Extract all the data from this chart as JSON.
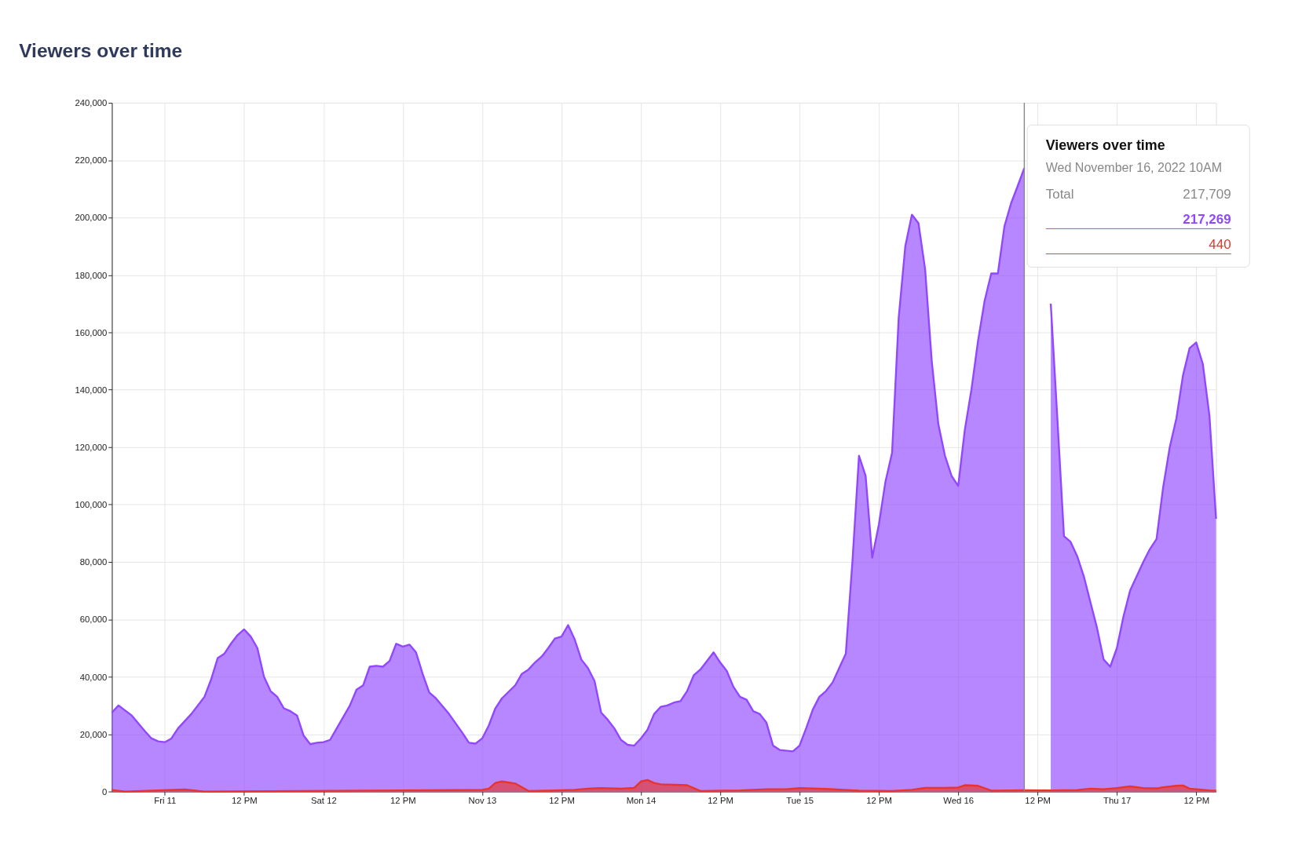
{
  "chart_data": {
    "type": "area",
    "title": "Viewers over time",
    "x": [
      "2022-11-10T16:00",
      "2022-11-10T17:00",
      "2022-11-10T19:00",
      "2022-11-10T21:00",
      "2022-11-10T22:00",
      "2022-11-10T23:00",
      "2022-11-11T00:00",
      "2022-11-11T01:00",
      "2022-11-11T02:00",
      "2022-11-11T04:00",
      "2022-11-11T06:00",
      "2022-11-11T07:00",
      "2022-11-11T08:00",
      "2022-11-11T09:00",
      "2022-11-11T10:00",
      "2022-11-11T11:00",
      "2022-11-11T12:00",
      "2022-11-11T13:00",
      "2022-11-11T14:00",
      "2022-11-11T15:00",
      "2022-11-11T16:00",
      "2022-11-11T17:00",
      "2022-11-11T18:00",
      "2022-11-11T19:00",
      "2022-11-11T20:00",
      "2022-11-11T21:00",
      "2022-11-11T22:00",
      "2022-11-11T23:00",
      "2022-11-12T00:00",
      "2022-11-12T01:00",
      "2022-11-12T02:00",
      "2022-11-12T04:00",
      "2022-11-12T05:00",
      "2022-11-12T06:00",
      "2022-11-12T07:00",
      "2022-11-12T08:00",
      "2022-11-12T09:00",
      "2022-11-12T10:00",
      "2022-11-12T11:00",
      "2022-11-12T12:00",
      "2022-11-12T13:00",
      "2022-11-12T14:00",
      "2022-11-12T15:00",
      "2022-11-12T16:00",
      "2022-11-12T17:00",
      "2022-11-12T19:00",
      "2022-11-12T21:00",
      "2022-11-12T22:00",
      "2022-11-12T23:00",
      "2022-11-13T00:00",
      "2022-11-13T01:00",
      "2022-11-13T02:00",
      "2022-11-13T03:00",
      "2022-11-13T05:00",
      "2022-11-13T06:00",
      "2022-11-13T07:00",
      "2022-11-13T08:00",
      "2022-11-13T09:00",
      "2022-11-13T10:00",
      "2022-11-13T11:00",
      "2022-11-13T12:00",
      "2022-11-13T13:00",
      "2022-11-13T14:00",
      "2022-11-13T15:00",
      "2022-11-13T16:00",
      "2022-11-13T17:00",
      "2022-11-13T18:00",
      "2022-11-13T19:00",
      "2022-11-13T20:00",
      "2022-11-13T21:00",
      "2022-11-13T22:00",
      "2022-11-13T23:00",
      "2022-11-14T00:00",
      "2022-11-14T01:00",
      "2022-11-14T02:00",
      "2022-11-14T03:00",
      "2022-11-14T04:00",
      "2022-11-14T05:00",
      "2022-11-14T06:00",
      "2022-11-14T07:00",
      "2022-11-14T08:00",
      "2022-11-14T09:00",
      "2022-11-14T10:00",
      "2022-11-14T11:00",
      "2022-11-14T12:00",
      "2022-11-14T13:00",
      "2022-11-14T14:00",
      "2022-11-14T15:00",
      "2022-11-14T16:00",
      "2022-11-14T17:00",
      "2022-11-14T18:00",
      "2022-11-14T19:00",
      "2022-11-14T20:00",
      "2022-11-14T21:00",
      "2022-11-14T23:00",
      "2022-11-15T00:00",
      "2022-11-15T01:00",
      "2022-11-15T02:00",
      "2022-11-15T03:00",
      "2022-11-15T04:00",
      "2022-11-15T05:00",
      "2022-11-15T06:00",
      "2022-11-15T07:00",
      "2022-11-15T08:00",
      "2022-11-15T09:00",
      "2022-11-15T10:00",
      "2022-11-15T11:00",
      "2022-11-15T12:00",
      "2022-11-15T13:00",
      "2022-11-15T14:00",
      "2022-11-15T15:00",
      "2022-11-15T16:00",
      "2022-11-15T17:00",
      "2022-11-15T18:00",
      "2022-11-15T19:00",
      "2022-11-15T20:00",
      "2022-11-15T21:00",
      "2022-11-15T22:00",
      "2022-11-15T23:00",
      "2022-11-16T00:00",
      "2022-11-16T01:00",
      "2022-11-16T02:00",
      "2022-11-16T03:00",
      "2022-11-16T04:00",
      "2022-11-16T05:00",
      "2022-11-16T06:00",
      "2022-11-16T07:00",
      "2022-11-16T08:00",
      "2022-11-16T09:00",
      "2022-11-16T10:00",
      "2022-11-16T11:00",
      "2022-11-16T12:00",
      "2022-11-16T13:00",
      "2022-11-16T14:00",
      "2022-11-16T15:00",
      "2022-11-16T16:00",
      "2022-11-16T17:00",
      "2022-11-16T18:00",
      "2022-11-16T19:00",
      "2022-11-16T20:00",
      "2022-11-16T21:00",
      "2022-11-16T22:00",
      "2022-11-16T23:00",
      "2022-11-17T00:00",
      "2022-11-17T01:00",
      "2022-11-17T02:00",
      "2022-11-17T03:00",
      "2022-11-17T04:00",
      "2022-11-17T05:00",
      "2022-11-17T06:00",
      "2022-11-17T07:00",
      "2022-11-17T08:00",
      "2022-11-17T09:00",
      "2022-11-17T10:00",
      "2022-11-17T11:00",
      "2022-11-17T12:00",
      "2022-11-17T13:00",
      "2022-11-17T14:00",
      "2022-11-17T15:00"
    ],
    "series": [
      {
        "color": "#9147ff",
        "values": [
          27500,
          30000,
          26500,
          21000,
          18500,
          17500,
          17200,
          18500,
          22000,
          27000,
          33000,
          39000,
          46500,
          48000,
          51500,
          54500,
          56500,
          54000,
          50000,
          40000,
          35000,
          33000,
          29000,
          28000,
          26500,
          19500,
          16500,
          17000,
          17200,
          18000,
          22000,
          30000,
          35500,
          37000,
          43500,
          43800,
          43500,
          45500,
          51500,
          50500,
          51200,
          48500,
          41000,
          34500,
          32500,
          27000,
          20500,
          17000,
          16700,
          18500,
          23000,
          29000,
          32500,
          37000,
          41000,
          42500,
          45000,
          47000,
          50000,
          53300,
          54000,
          58000,
          53000,
          46000,
          43000,
          38500,
          27500,
          25000,
          22000,
          18000,
          16300,
          16000,
          18500,
          21500,
          27000,
          29500,
          30000,
          31000,
          31500,
          35000,
          40500,
          42500,
          45500,
          48500,
          45000,
          42000,
          36500,
          33000,
          32000,
          28000,
          27000,
          24000,
          16000,
          14500,
          14000,
          16000,
          22000,
          28500,
          33000,
          35000,
          38000,
          43000,
          48000,
          80000,
          117000,
          110000,
          81500,
          93000,
          108000,
          118000,
          165000,
          190000,
          201000,
          198000,
          182000,
          150000,
          128000,
          117000,
          110000,
          106500,
          126000,
          140000,
          157000,
          171000,
          180500,
          180500,
          197000,
          205000,
          211000,
          217269,
          null,
          null,
          null,
          170000,
          130000,
          89000,
          87000,
          82000,
          75000,
          66000,
          57000,
          46000,
          43500,
          50000,
          61000,
          70000,
          75000,
          80000,
          84500,
          88000,
          106000,
          120000,
          130000,
          145000,
          154500,
          156500,
          149000,
          131000,
          95000
        ]
      },
      {
        "color": "#e8342a",
        "x": [
          "2022-11-10T16:00",
          "2022-11-10T18:00",
          "2022-11-11T03:00",
          "2022-11-11T06:00",
          "2022-11-12T20:00",
          "2022-11-13T00:00",
          "2022-11-13T01:00",
          "2022-11-13T02:00",
          "2022-11-13T03:00",
          "2022-11-13T05:00",
          "2022-11-13T06:00",
          "2022-11-13T07:00",
          "2022-11-13T10:00",
          "2022-11-13T14:00",
          "2022-11-13T16:00",
          "2022-11-13T18:00",
          "2022-11-13T21:00",
          "2022-11-13T23:00",
          "2022-11-14T00:00",
          "2022-11-14T01:00",
          "2022-11-14T02:00",
          "2022-11-14T03:00",
          "2022-11-14T07:00",
          "2022-11-14T09:00",
          "2022-11-14T15:00",
          "2022-11-14T19:00",
          "2022-11-14T22:00",
          "2022-11-15T00:00",
          "2022-11-15T04:00",
          "2022-11-15T09:00",
          "2022-11-15T14:00",
          "2022-11-15T17:00",
          "2022-11-15T19:00",
          "2022-11-15T22:00",
          "2022-11-16T00:00",
          "2022-11-16T01:00",
          "2022-11-16T03:00",
          "2022-11-16T05:00",
          "2022-11-16T10:00",
          "2022-11-16T14:00",
          "2022-11-16T18:00",
          "2022-11-16T20:00",
          "2022-11-16T22:00",
          "2022-11-17T00:00",
          "2022-11-17T02:00",
          "2022-11-17T04:00",
          "2022-11-17T06:00",
          "2022-11-17T07:00",
          "2022-11-17T09:00",
          "2022-11-17T10:00",
          "2022-11-17T11:00",
          "2022-11-17T14:00",
          "2022-11-17T15:00"
        ],
        "values": [
          500,
          0,
          700,
          0,
          500,
          600,
          1000,
          3000,
          3500,
          2800,
          1500,
          200,
          300,
          600,
          1000,
          1200,
          1000,
          1300,
          3500,
          4000,
          3000,
          2500,
          2200,
          200,
          400,
          800,
          800,
          1200,
          900,
          300,
          200,
          600,
          1300,
          1300,
          1400,
          2200,
          2000,
          300,
          440,
          400,
          500,
          1000,
          800,
          1200,
          1800,
          1200,
          1100,
          1500,
          2000,
          2100,
          1000,
          400,
          300
        ]
      }
    ],
    "xlim": [
      "2022-11-10T16:00",
      "2022-11-17T15:00"
    ],
    "xticks": [
      {
        "value": "2022-11-11T00:00",
        "label": "Fri 11"
      },
      {
        "value": "2022-11-11T12:00",
        "label": "12 PM"
      },
      {
        "value": "2022-11-12T00:00",
        "label": "Sat 12"
      },
      {
        "value": "2022-11-12T12:00",
        "label": "12 PM"
      },
      {
        "value": "2022-11-13T00:00",
        "label": "Nov 13"
      },
      {
        "value": "2022-11-13T12:00",
        "label": "12 PM"
      },
      {
        "value": "2022-11-14T00:00",
        "label": "Mon 14"
      },
      {
        "value": "2022-11-14T12:00",
        "label": "12 PM"
      },
      {
        "value": "2022-11-15T00:00",
        "label": "Tue 15"
      },
      {
        "value": "2022-11-15T12:00",
        "label": "12 PM"
      },
      {
        "value": "2022-11-16T00:00",
        "label": "Wed 16"
      },
      {
        "value": "2022-11-16T12:00",
        "label": "12 PM"
      },
      {
        "value": "2022-11-17T00:00",
        "label": "Thu 17"
      },
      {
        "value": "2022-11-17T12:00",
        "label": "12 PM"
      }
    ],
    "ylim": [
      0,
      240000
    ],
    "yticks": [
      {
        "value": 0,
        "label": "0"
      },
      {
        "value": 20000,
        "label": "20,000"
      },
      {
        "value": 40000,
        "label": "40,000"
      },
      {
        "value": 60000,
        "label": "60,000"
      },
      {
        "value": 80000,
        "label": "80,000"
      },
      {
        "value": 100000,
        "label": "100,000"
      },
      {
        "value": 120000,
        "label": "120,000"
      },
      {
        "value": 140000,
        "label": "140,000"
      },
      {
        "value": 160000,
        "label": "160,000"
      },
      {
        "value": 180000,
        "label": "180,000"
      },
      {
        "value": 200000,
        "label": "200,000"
      },
      {
        "value": 220000,
        "label": "220,000"
      },
      {
        "value": 240000,
        "label": "240,000"
      }
    ],
    "grid": true,
    "ref_lines": [
      {
        "axis": "x",
        "value": "2022-11-16T10:00",
        "color": "#888888"
      }
    ],
    "annotations": [
      "Viewers over time",
      "Wed November 16, 2022 10AM",
      "Total",
      "217,709",
      "217,269",
      "440"
    ]
  }
}
